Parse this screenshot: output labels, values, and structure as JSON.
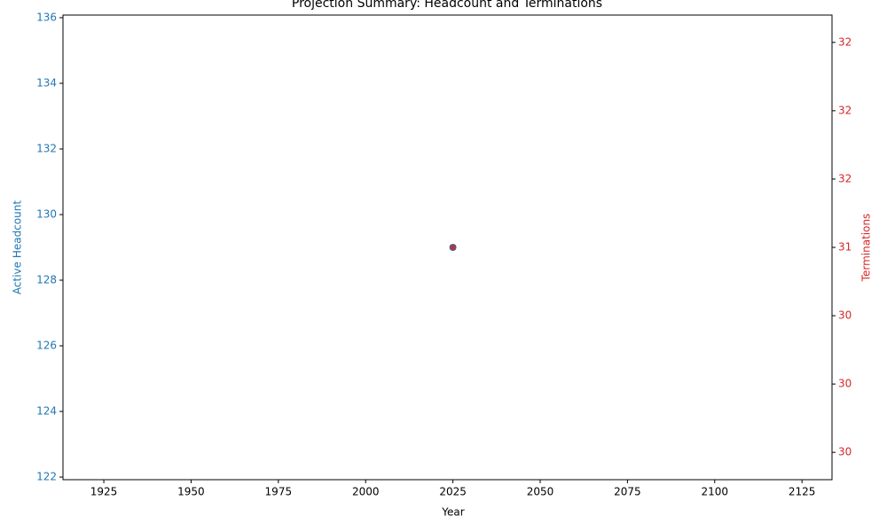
{
  "chart_data": {
    "type": "scatter",
    "title": "Projection Summary: Headcount and Terminations",
    "xlabel": "Year",
    "ylabel": "Active Headcount",
    "y2label": "Terminations",
    "x": [
      2025
    ],
    "series": [
      {
        "color": "#1f77b4",
        "marker": "circle",
        "values": [
          129
        ]
      },
      {
        "color": "#d62728",
        "marker": "square",
        "axis": "y2",
        "values": [
          31
        ]
      }
    ],
    "xlim": [
      1913.3,
      2133.6
    ],
    "xticks": [
      1925,
      1950,
      1975,
      2000,
      2025,
      2050,
      2075,
      2100,
      2125
    ],
    "ylim": [
      121.92,
      136.08
    ],
    "yticks": [
      122,
      124,
      126,
      128,
      130,
      132,
      134,
      136
    ],
    "y2lim": [
      29.3,
      32.7
    ],
    "y2ticks": [
      {
        "value": 29.5,
        "label": "30"
      },
      {
        "value": 30,
        "label": "30"
      },
      {
        "value": 30.5,
        "label": "30"
      },
      31,
      {
        "value": 31.5,
        "label": "32"
      },
      {
        "value": 32,
        "label": "32"
      },
      {
        "value": 32.5,
        "label": "32"
      }
    ],
    "grid": false
  }
}
